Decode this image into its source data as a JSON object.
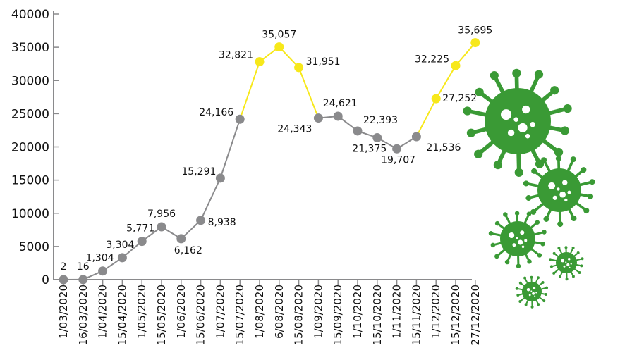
{
  "chart_data": {
    "type": "line",
    "title": "",
    "xlabel": "",
    "ylabel": "",
    "ylim": [
      0,
      40000
    ],
    "yticks": [
      0,
      5000,
      10000,
      15000,
      20000,
      25000,
      30000,
      35000,
      40000
    ],
    "grid": false,
    "categories": [
      "1/03/2020",
      "16/03/2020",
      "1/04/2020",
      "15/04/2020",
      "1/05/2020",
      "15/05/2020",
      "1/06/2020",
      "15/06/2020",
      "1/07/2020",
      "15/07/2020",
      "1/08/2020",
      "6/08/2020",
      "15/08/2020",
      "1/09/2020",
      "15/09/2020",
      "1/10/2020",
      "15/10/2020",
      "1/11/2020",
      "15/11/2020",
      "1/12/2020",
      "15/12/2020",
      "27/12/2020"
    ],
    "values": [
      2,
      16,
      1304,
      3304,
      5771,
      7956,
      6162,
      8938,
      15291,
      24166,
      32821,
      35057,
      31951,
      24343,
      24621,
      22393,
      21375,
      19707,
      21536,
      27252,
      32225,
      35695
    ],
    "labels": [
      "2",
      "16",
      "1,304",
      "3,304",
      "5,771",
      "7,956",
      "6,162",
      "8,938",
      "15,291",
      "24,166",
      "32,821",
      "35,057",
      "31,951",
      "24,343",
      "24,621",
      "22,393",
      "21,375",
      "19,707",
      "21,536",
      "27,252",
      "32,225",
      "35,695"
    ],
    "highlighted": [
      false,
      false,
      false,
      false,
      false,
      false,
      false,
      false,
      false,
      false,
      true,
      true,
      true,
      false,
      false,
      false,
      false,
      false,
      false,
      true,
      true,
      true
    ],
    "colors": {
      "normal": "#8a8a8c",
      "highlight": "#f7e81a",
      "axis": "#8a8a8c",
      "virus": "#3a9a35"
    }
  },
  "decorations": {
    "icons": [
      "virus-icon",
      "virus-icon",
      "virus-icon",
      "virus-icon",
      "virus-icon"
    ]
  }
}
